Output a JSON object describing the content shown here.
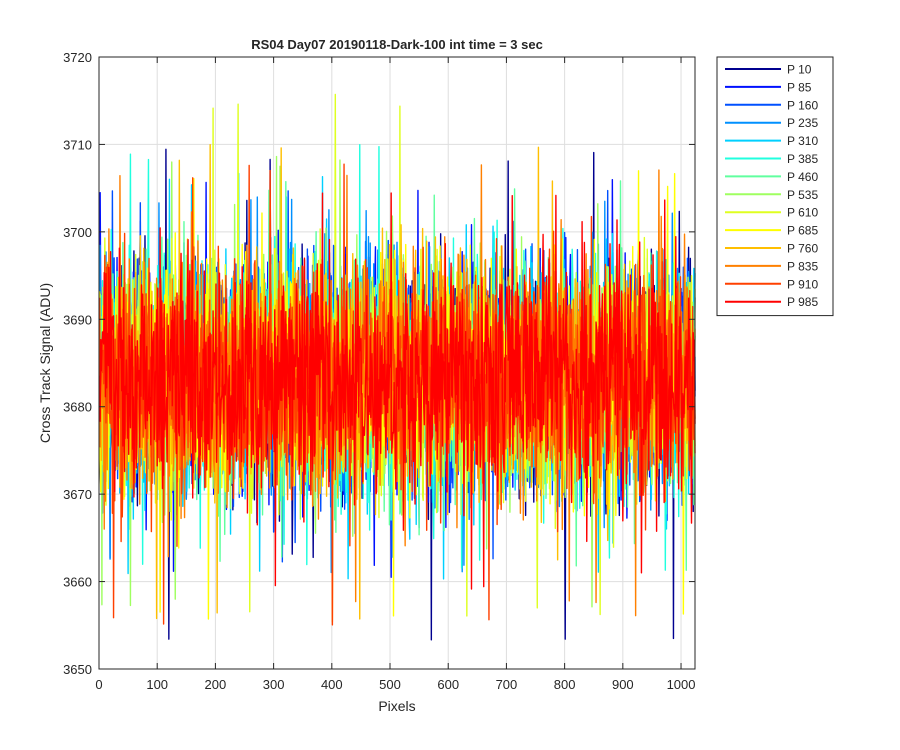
{
  "chart_data": {
    "type": "line",
    "title": "RS04 Day07 20190118-Dark-100 int time = 3 sec",
    "xlabel": "Pixels",
    "ylabel": "Cross Track Signal (ADU)",
    "xlim": [
      0,
      1024
    ],
    "ylim": [
      3650,
      3720
    ],
    "xticks": [
      0,
      100,
      200,
      300,
      400,
      500,
      600,
      700,
      800,
      900,
      1000
    ],
    "yticks": [
      3650,
      3660,
      3670,
      3680,
      3690,
      3700,
      3710,
      3720
    ],
    "grid": true,
    "legend_position": "outside-top-right",
    "series": [
      {
        "name": "P 10",
        "color": "#00008f",
        "mean": 3683,
        "approx_min": 3652,
        "approx_max": 3710
      },
      {
        "name": "P 85",
        "color": "#0010ff",
        "mean": 3683,
        "approx_min": 3660,
        "approx_max": 3706
      },
      {
        "name": "P 160",
        "color": "#0050ff",
        "mean": 3683,
        "approx_min": 3661,
        "approx_max": 3705
      },
      {
        "name": "P 235",
        "color": "#0090ff",
        "mean": 3683,
        "approx_min": 3661,
        "approx_max": 3704
      },
      {
        "name": "P 310",
        "color": "#00d0ff",
        "mean": 3683,
        "approx_min": 3660,
        "approx_max": 3707
      },
      {
        "name": "P 385",
        "color": "#20ffdf",
        "mean": 3683,
        "approx_min": 3661,
        "approx_max": 3710
      },
      {
        "name": "P 460",
        "color": "#60ff9f",
        "mean": 3683,
        "approx_min": 3661,
        "approx_max": 3706
      },
      {
        "name": "P 535",
        "color": "#9fff60",
        "mean": 3683,
        "approx_min": 3657,
        "approx_max": 3709
      },
      {
        "name": "P 610",
        "color": "#dfff20",
        "mean": 3683,
        "approx_min": 3655,
        "approx_max": 3716
      },
      {
        "name": "P 685",
        "color": "#ffff00",
        "mean": 3683,
        "approx_min": 3655,
        "approx_max": 3707
      },
      {
        "name": "P 760",
        "color": "#ffbf00",
        "mean": 3683,
        "approx_min": 3655,
        "approx_max": 3710
      },
      {
        "name": "P 835",
        "color": "#ff8000",
        "mean": 3683,
        "approx_min": 3656,
        "approx_max": 3708
      },
      {
        "name": "P 910",
        "color": "#ff4000",
        "mean": 3683,
        "approx_min": 3654,
        "approx_max": 3708
      },
      {
        "name": "P 985",
        "color": "#ff0000",
        "mean": 3683,
        "approx_min": 3659,
        "approx_max": 3705
      }
    ]
  }
}
